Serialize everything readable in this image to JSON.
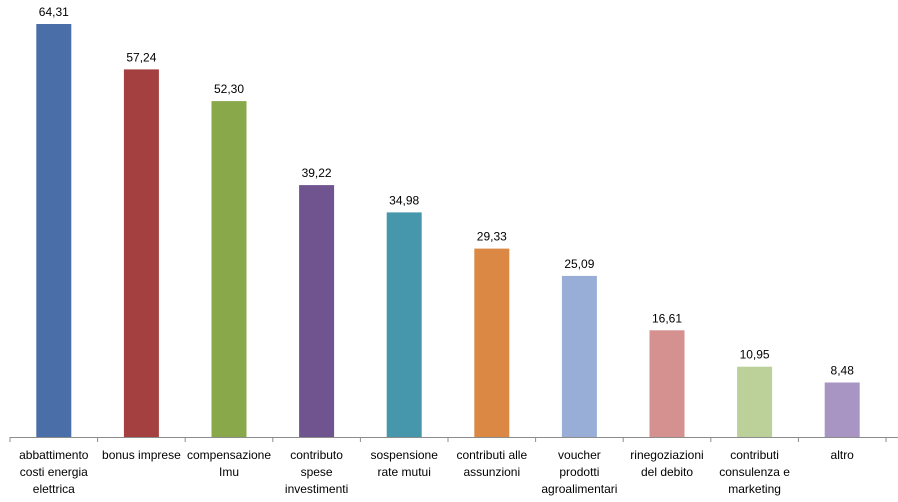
{
  "chart_data": {
    "type": "bar",
    "categories": [
      [
        "abbattimento",
        "costi energia",
        "elettrica"
      ],
      [
        "bonus imprese"
      ],
      [
        "compensazione",
        "Imu"
      ],
      [
        "contributo",
        "spese",
        "investimenti"
      ],
      [
        "sospensione",
        "rate mutui"
      ],
      [
        "contributi alle",
        "assunzioni"
      ],
      [
        "voucher",
        "prodotti",
        "agroalimentari"
      ],
      [
        "rinegoziazioni",
        "del debito"
      ],
      [
        "contributi",
        "consulenza e",
        "marketing"
      ],
      [
        "altro"
      ]
    ],
    "values": [
      64.31,
      57.24,
      52.3,
      39.22,
      34.98,
      29.33,
      25.09,
      16.61,
      10.95,
      8.48
    ],
    "value_labels": [
      "64,31",
      "57,24",
      "52,30",
      "39,22",
      "34,98",
      "29,33",
      "25,09",
      "16,61",
      "10,95",
      "8,48"
    ],
    "colors": [
      "#4A6FA8",
      "#A4403F",
      "#88A84A",
      "#6F5490",
      "#4797AC",
      "#DA8844",
      "#98AED6",
      "#D49190",
      "#BCD19A",
      "#A895C4"
    ],
    "title": "",
    "xlabel": "",
    "ylabel": "",
    "ylim": [
      0,
      64.31
    ],
    "grid": false,
    "legend": "none"
  }
}
